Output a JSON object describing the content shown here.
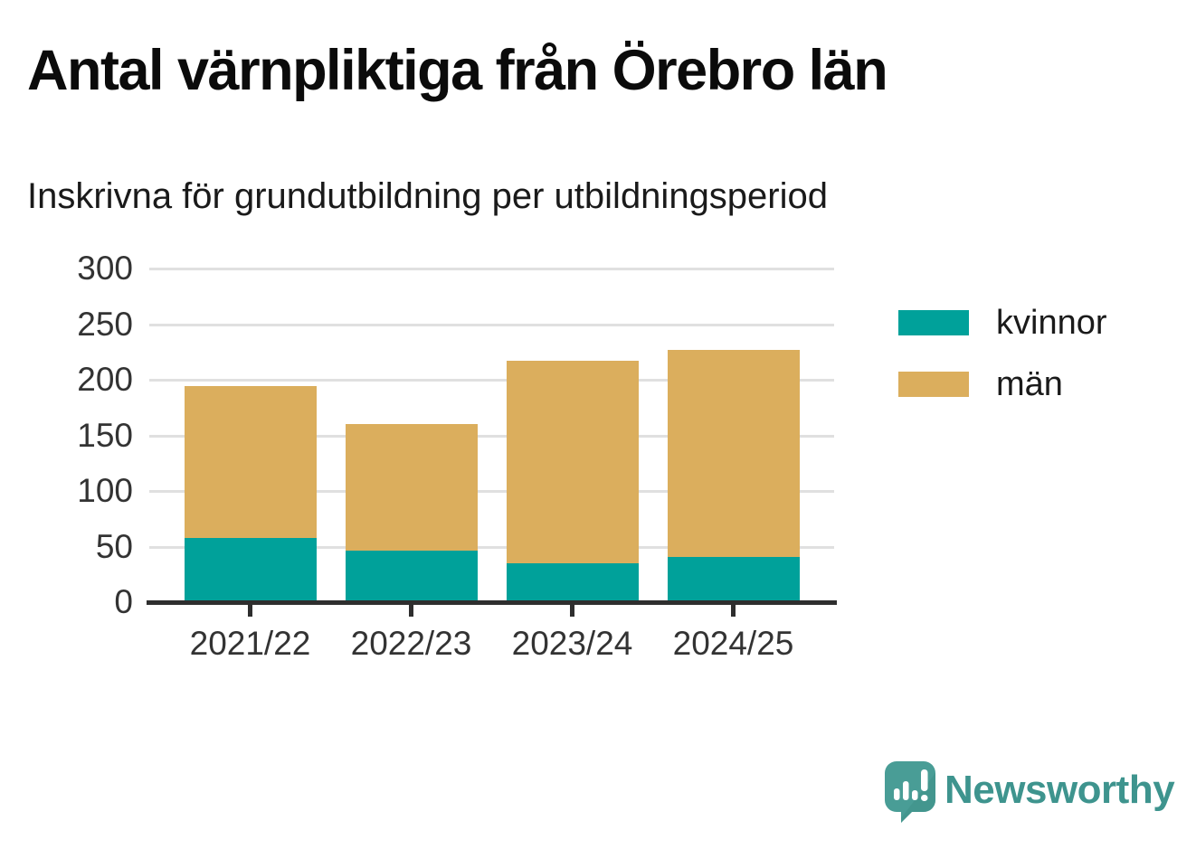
{
  "title": "Antal värnpliktiga från Örebro län",
  "subtitle": "Inskrivna för grundutbildning per utbildningsperiod",
  "chart_data": {
    "type": "bar",
    "stacked": true,
    "title": "Antal värnpliktiga från Örebro län",
    "subtitle": "Inskrivna för grundutbildning per utbildningsperiod",
    "categories": [
      "2021/22",
      "2022/23",
      "2023/24",
      "2024/25"
    ],
    "series": [
      {
        "name": "kvinnor",
        "color": "#00a19a",
        "values": [
          58,
          46,
          35,
          41
        ]
      },
      {
        "name": "män",
        "color": "#dbae5d",
        "values": [
          136,
          114,
          182,
          186
        ]
      }
    ],
    "totals": [
      194,
      160,
      217,
      227
    ],
    "xlabel": "",
    "ylabel": "",
    "ylim": [
      0,
      300
    ],
    "yticks": [
      0,
      50,
      100,
      150,
      200,
      250,
      300
    ],
    "grid": true,
    "legend_position": "right"
  },
  "branding": {
    "logo_text": "Newsworthy",
    "logo_color": "#3e948e",
    "logo_icon": "speech-bubble-barchart-icon"
  }
}
